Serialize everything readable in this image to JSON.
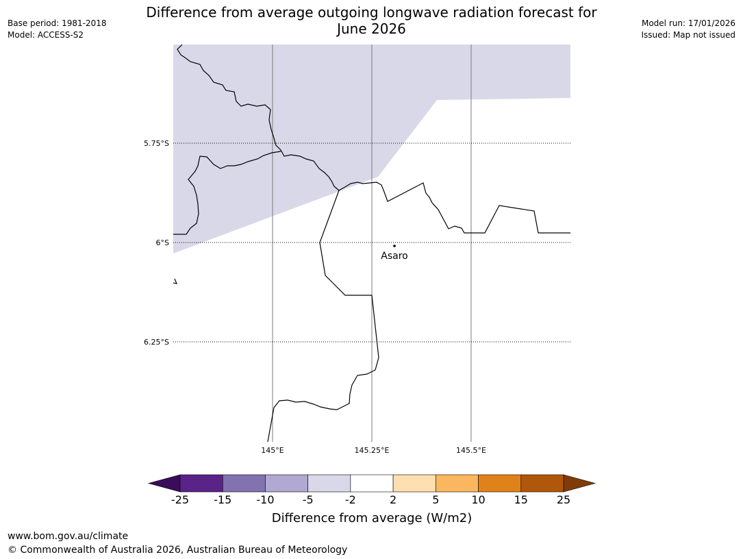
{
  "header": {
    "title_line1": "Difference from average outgoing longwave radiation forecast for",
    "title_line2": "June 2026",
    "base_period": "Base period: 1981-2018",
    "model": "Model: ACCESS-S2",
    "model_run": "Model run: 17/01/2026",
    "issued": "Issued: Map not issued"
  },
  "map": {
    "lat_labels": [
      "5.75°S",
      "6°S",
      "6.25°S"
    ],
    "lon_labels": [
      "145°E",
      "145.25°E",
      "145.5°E"
    ],
    "town": {
      "name": "Asaro",
      "lat": -6.01,
      "lon": 145.3
    },
    "shaded_category": "-5 to -2",
    "shaded_color": "#d8d8e9"
  },
  "colorbar": {
    "label": "Difference from average (W/m2)",
    "ticks": [
      "-25",
      "-15",
      "-10",
      "-5",
      "-2",
      "2",
      "5",
      "10",
      "15",
      "25"
    ],
    "colors": [
      "#5a2388",
      "#8272af",
      "#b1a9d1",
      "#d8d8e9",
      "#ffffff",
      "#fddfb1",
      "#fbb760",
      "#e0821a",
      "#b1570a"
    ],
    "under_color": "#3a0c59",
    "over_color": "#7f3c09"
  },
  "footer": {
    "url": "www.bom.gov.au/climate",
    "copyright": "© Commonwealth of Australia 2026, Australian Bureau of Meteorology"
  }
}
